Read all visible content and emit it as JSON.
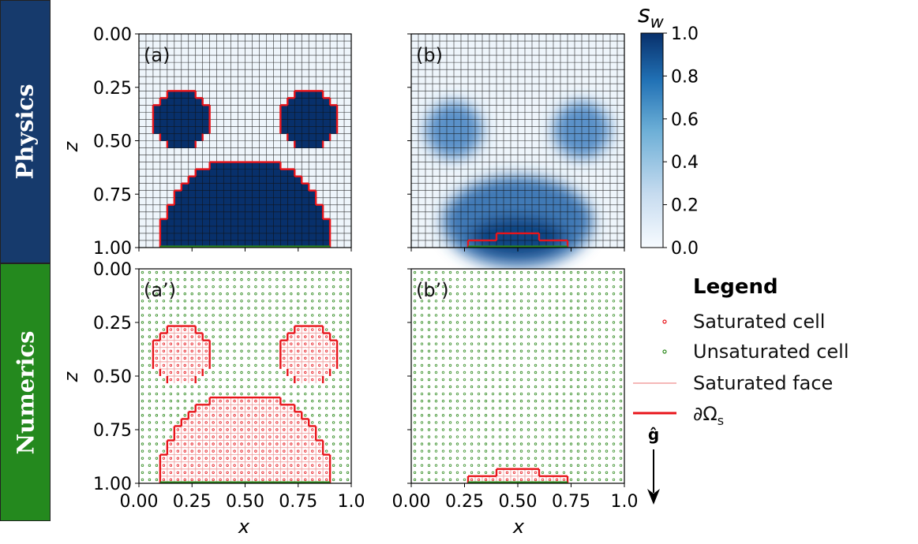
{
  "bands": [
    {
      "label": "Physics",
      "color": "#163a6c"
    },
    {
      "label": "Numerics",
      "color": "#24891e"
    }
  ],
  "colorbar": {
    "title": "s_w",
    "ticks": [
      "1.0",
      "0.8",
      "0.6",
      "0.4",
      "0.2",
      "0.0"
    ],
    "colors": [
      "#f7fbff",
      "#c6dbef",
      "#6baed6",
      "#2171b5",
      "#08306b"
    ]
  },
  "chart_data": [
    {
      "type": "heatmap",
      "panel": "(a)",
      "ylabel": "z",
      "xlabel": "",
      "xlim": [
        0.0,
        1.0
      ],
      "ylim": [
        1.0,
        0.0
      ],
      "yticks": [
        "0.00",
        "0.25",
        "0.50",
        "0.75",
        "1.00"
      ],
      "grid": true,
      "colorbar": "s_w",
      "saturated_regions": [
        {
          "shape": "disc",
          "center": [
            0.2,
            0.4
          ],
          "radius": 0.13
        },
        {
          "shape": "disc",
          "center": [
            0.8,
            0.4
          ],
          "radius": 0.13
        },
        {
          "shape": "mound",
          "x_range": [
            0.1,
            0.9
          ],
          "top": 0.6
        }
      ]
    },
    {
      "type": "heatmap",
      "panel": "(b)",
      "xlim": [
        0.0,
        1.0
      ],
      "ylim": [
        1.0,
        0.0
      ],
      "grid": true,
      "colorbar": "s_w",
      "saturated_regions": [
        {
          "shape": "step",
          "x_range": [
            0.28,
            0.72
          ],
          "top": 0.96
        },
        {
          "shape": "step",
          "x_range": [
            0.4,
            0.6
          ],
          "top": 0.93
        }
      ]
    },
    {
      "type": "scatter",
      "panel": "(a’)",
      "ylabel": "z",
      "xlabel": "x",
      "xlim": [
        0.0,
        1.0
      ],
      "ylim": [
        1.0,
        0.0
      ],
      "xticks": [
        "0.00",
        "0.25",
        "0.50",
        "0.75",
        "1.0"
      ],
      "yticks": [
        "0.00",
        "0.25",
        "0.50",
        "0.75",
        "1.00"
      ]
    },
    {
      "type": "scatter",
      "panel": "(b’)",
      "xlabel": "x",
      "xlim": [
        0.0,
        1.0
      ],
      "ylim": [
        1.0,
        0.0
      ],
      "xticks": [
        "0.00",
        "0.25",
        "0.50",
        "0.75",
        "1.0"
      ]
    }
  ],
  "legend": {
    "title": "Legend",
    "items": [
      {
        "label": "Saturated cell",
        "color": "#e8141a"
      },
      {
        "label": "Unsaturated cell",
        "color": "#2f8a1f"
      },
      {
        "label": "Saturated face",
        "color": "#f2a0a0"
      },
      {
        "label": "∂Ω",
        "sub": "s",
        "color": "#e8141a"
      }
    ]
  },
  "gravity": {
    "label": "ĝ"
  }
}
